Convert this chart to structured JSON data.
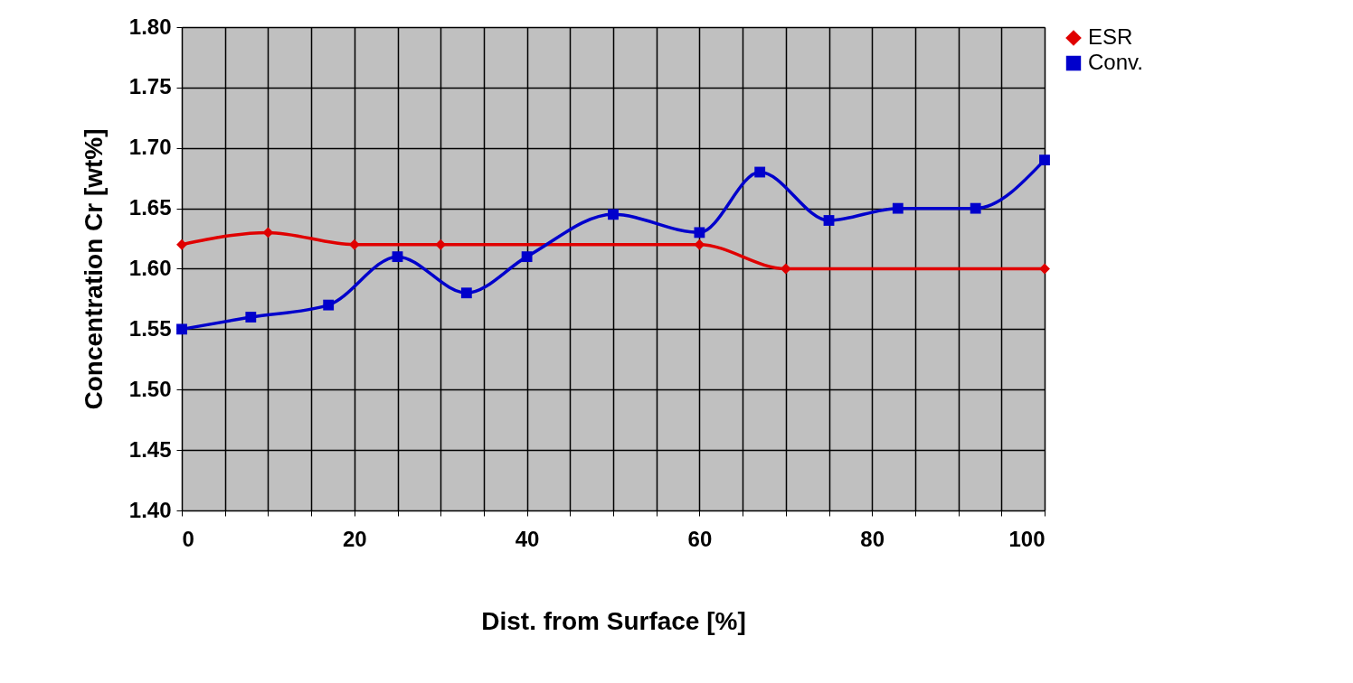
{
  "chart_data": {
    "type": "line",
    "xlabel": "Dist. from Surface [%]",
    "ylabel": "Concentration Cr [wt%]",
    "xlim": [
      0,
      100
    ],
    "ylim": [
      1.4,
      1.8
    ],
    "xticks": [
      0,
      {
        "value": 5,
        "label": null
      },
      {
        "value": 10,
        "label": null
      },
      {
        "value": 15,
        "label": null
      },
      20,
      {
        "value": 25,
        "label": null
      },
      {
        "value": 30,
        "label": null
      },
      {
        "value": 35,
        "label": null
      },
      40,
      {
        "value": 45,
        "label": null
      },
      {
        "value": 50,
        "label": null
      },
      {
        "value": 55,
        "label": null
      },
      60,
      {
        "value": 65,
        "label": null
      },
      {
        "value": 70,
        "label": null
      },
      {
        "value": 75,
        "label": null
      },
      80,
      {
        "value": 85,
        "label": null
      },
      {
        "value": 90,
        "label": null
      },
      {
        "value": 95,
        "label": null
      },
      100
    ],
    "yticks": [
      {
        "value": 1.4,
        "label": "1.40"
      },
      {
        "value": 1.45,
        "label": "1.45"
      },
      {
        "value": 1.5,
        "label": "1.50"
      },
      {
        "value": 1.55,
        "label": "1.55"
      },
      {
        "value": 1.6,
        "label": "1.60"
      },
      {
        "value": 1.65,
        "label": "1.65"
      },
      {
        "value": 1.7,
        "label": "1.70"
      },
      {
        "value": 1.75,
        "label": "1.75"
      },
      {
        "value": 1.8,
        "label": "1.80"
      }
    ],
    "grid": true,
    "legend": "right",
    "series": [
      {
        "name": "ESR",
        "color": "#e00000",
        "marker": "diamond",
        "x": [
          0,
          10,
          20,
          30,
          60,
          70,
          100
        ],
        "values": [
          1.62,
          1.63,
          1.62,
          1.62,
          1.62,
          1.6,
          1.6
        ]
      },
      {
        "name": "Conv.",
        "color": "#0000cc",
        "marker": "square",
        "x": [
          0,
          8,
          17,
          25,
          33,
          40,
          50,
          60,
          67,
          75,
          83,
          92,
          100
        ],
        "values": [
          1.55,
          1.56,
          1.57,
          1.61,
          1.58,
          1.61,
          1.645,
          1.63,
          1.68,
          1.64,
          1.65,
          1.65,
          1.69
        ]
      }
    ]
  }
}
